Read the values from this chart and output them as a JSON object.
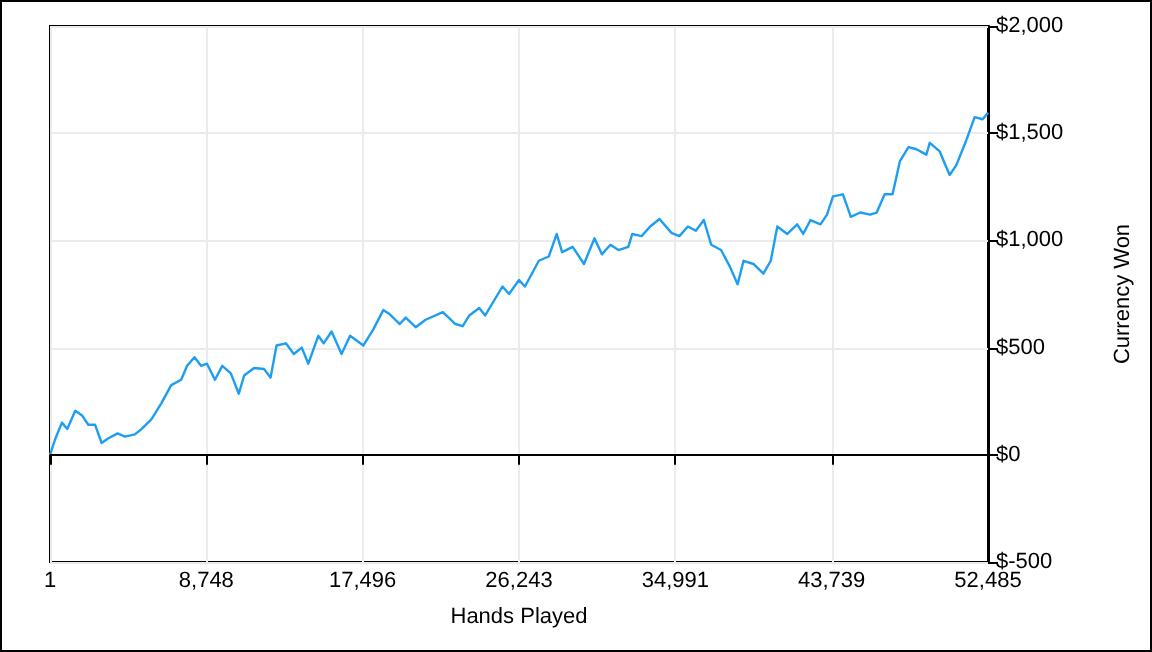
{
  "chart_data": {
    "type": "line",
    "xlabel": "Hands Played",
    "ylabel": "Currency Won",
    "xlim": [
      1,
      52485
    ],
    "xticks": [
      1,
      {
        "value": 8748,
        "label": "8,748"
      },
      {
        "value": 17496,
        "label": "17,496"
      },
      {
        "value": 26243,
        "label": "26,243"
      },
      {
        "value": 34991,
        "label": "34,991"
      },
      {
        "value": 43739,
        "label": "43,739"
      },
      {
        "value": 52485,
        "label": "52,485"
      }
    ],
    "ylim": [
      -500,
      2000
    ],
    "yticks": [
      {
        "value": -500,
        "label": "$-500"
      },
      {
        "value": 0,
        "label": "$0"
      },
      {
        "value": 500,
        "label": "$500"
      },
      {
        "value": 1000,
        "label": "$1,000"
      },
      {
        "value": 1500,
        "label": "$1,500"
      },
      {
        "value": 2000,
        "label": "$2,000"
      }
    ],
    "grid": true,
    "marker": "none",
    "line_style": "solid",
    "ref_lines": [
      {
        "axis": "y",
        "value": 0,
        "label": null,
        "color": "#000000"
      }
    ],
    "x": [
      1,
      301,
      668,
      968,
      1413,
      1780,
      2147,
      2525,
      2892,
      3226,
      3781,
      4193,
      4749,
      5116,
      5672,
      6228,
      6784,
      7340,
      7673,
      8085,
      8451,
      8785,
      9230,
      9641,
      10119,
      10564,
      10865,
      11420,
      11976,
      12343,
      12677,
      13200,
      13644,
      14089,
      14456,
      15012,
      15312,
      15757,
      16313,
      16791,
      17536,
      18092,
      18648,
      19015,
      19571,
      19905,
      20460,
      21016,
      21984,
      22684,
      23095,
      23462,
      24018,
      24352,
      25319,
      25686,
      26242,
      26576,
      27354,
      27910,
      28355,
      28655,
      29245,
      29879,
      30468,
      30880,
      31358,
      31803,
      32359,
      32581,
      33104,
      33582,
      34104,
      34772,
      35216,
      35694,
      36139,
      36584,
      36995,
      37551,
      38029,
      38474,
      38807,
      39363,
      39919,
      40330,
      40697,
      41253,
      41809,
      42143,
      42554,
      43110,
      43477,
      43811,
      44366,
      44811,
      45334,
      45890,
      46257,
      46702,
      47146,
      47558,
      48036,
      48481,
      49037,
      49226,
      49782,
      50338,
      50705,
      51261,
      51739,
      52184,
      52485
    ],
    "series": [
      {
        "color": "#1e9ef0",
        "values": [
          0,
          75,
          150,
          120,
          205,
          185,
          140,
          140,
          55,
          75,
          100,
          85,
          95,
          120,
          165,
          240,
          325,
          350,
          415,
          455,
          415,
          425,
          350,
          415,
          380,
          285,
          370,
          405,
          400,
          360,
          510,
          520,
          470,
          500,
          425,
          555,
          520,
          575,
          470,
          555,
          510,
          585,
          675,
          655,
          610,
          640,
          595,
          630,
          665,
          610,
          600,
          650,
          685,
          650,
          785,
          750,
          815,
          785,
          905,
          925,
          1030,
          945,
          970,
          890,
          1010,
          935,
          980,
          955,
          970,
          1030,
          1020,
          1065,
          1100,
          1035,
          1020,
          1065,
          1045,
          1095,
          980,
          955,
          880,
          795,
          905,
          890,
          845,
          905,
          1065,
          1030,
          1075,
          1030,
          1095,
          1075,
          1120,
          1205,
          1215,
          1110,
          1130,
          1120,
          1130,
          1215,
          1215,
          1370,
          1435,
          1425,
          1400,
          1455,
          1415,
          1305,
          1350,
          1465,
          1575,
          1565,
          1595
        ]
      }
    ]
  }
}
